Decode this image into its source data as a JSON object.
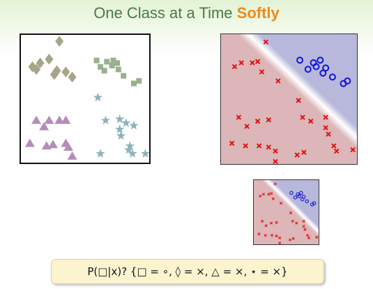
{
  "title": {
    "main": "One Class at a Time",
    "highlight": "Softly"
  },
  "formula": "P(□|x)? {□ = ∘, ◊ = ×, △ = ×, ⋆ = ×}",
  "colors": {
    "diamond": "#a6a587",
    "square": "#98b08e",
    "triangle": "#b58db7",
    "star": "#8db2ba",
    "positive": "#1414d6",
    "negative": "#e01010",
    "region_negative": "#dcb6b8",
    "region_positive": "#b8b8dc"
  },
  "points": {
    "diamonds": [
      [
        0.3,
        0.05
      ],
      [
        0.09,
        0.25
      ],
      [
        0.15,
        0.22
      ],
      [
        0.22,
        0.19
      ],
      [
        0.28,
        0.28
      ],
      [
        0.35,
        0.29
      ],
      [
        0.4,
        0.33
      ],
      [
        0.12,
        0.27
      ],
      [
        0.26,
        0.31
      ]
    ],
    "squares": [
      [
        0.59,
        0.2
      ],
      [
        0.62,
        0.25
      ],
      [
        0.65,
        0.28
      ],
      [
        0.67,
        0.21
      ],
      [
        0.71,
        0.24
      ],
      [
        0.75,
        0.22
      ],
      [
        0.76,
        0.27
      ],
      [
        0.8,
        0.32
      ],
      [
        0.88,
        0.38
      ],
      [
        0.92,
        0.36
      ],
      [
        0.72,
        0.2
      ]
    ],
    "triangles": [
      [
        0.12,
        0.67
      ],
      [
        0.18,
        0.72
      ],
      [
        0.22,
        0.67
      ],
      [
        0.3,
        0.67
      ],
      [
        0.35,
        0.67
      ],
      [
        0.07,
        0.85
      ],
      [
        0.2,
        0.87
      ],
      [
        0.25,
        0.86
      ],
      [
        0.35,
        0.85
      ],
      [
        0.37,
        0.88
      ],
      [
        0.4,
        0.95
      ]
    ],
    "stars": [
      [
        0.6,
        0.49
      ],
      [
        0.66,
        0.67
      ],
      [
        0.77,
        0.66
      ],
      [
        0.82,
        0.69
      ],
      [
        0.77,
        0.74
      ],
      [
        0.88,
        0.71
      ],
      [
        0.78,
        0.79
      ],
      [
        0.62,
        0.93
      ],
      [
        0.84,
        0.9
      ],
      [
        0.87,
        0.93
      ],
      [
        0.97,
        0.93
      ],
      [
        0.85,
        0.87
      ]
    ]
  },
  "classifier": {
    "circles": [
      [
        0.58,
        0.2
      ],
      [
        0.64,
        0.27
      ],
      [
        0.7,
        0.25
      ],
      [
        0.73,
        0.2
      ],
      [
        0.77,
        0.26
      ],
      [
        0.75,
        0.3
      ],
      [
        0.82,
        0.33
      ],
      [
        0.9,
        0.38
      ],
      [
        0.93,
        0.36
      ],
      [
        0.68,
        0.22
      ]
    ],
    "crosses": [
      [
        0.33,
        0.06
      ],
      [
        0.27,
        0.21
      ],
      [
        0.1,
        0.25
      ],
      [
        0.15,
        0.22
      ],
      [
        0.23,
        0.22
      ],
      [
        0.3,
        0.29
      ],
      [
        0.42,
        0.36
      ],
      [
        0.57,
        0.51
      ],
      [
        0.13,
        0.64
      ],
      [
        0.19,
        0.71
      ],
      [
        0.27,
        0.67
      ],
      [
        0.35,
        0.66
      ],
      [
        0.6,
        0.64
      ],
      [
        0.66,
        0.67
      ],
      [
        0.77,
        0.64
      ],
      [
        0.77,
        0.72
      ],
      [
        0.79,
        0.77
      ],
      [
        0.08,
        0.84
      ],
      [
        0.18,
        0.86
      ],
      [
        0.28,
        0.86
      ],
      [
        0.35,
        0.87
      ],
      [
        0.4,
        0.9
      ],
      [
        0.61,
        0.91
      ],
      [
        0.83,
        0.86
      ],
      [
        0.85,
        0.9
      ],
      [
        0.97,
        0.89
      ],
      [
        0.4,
        0.98
      ],
      [
        0.56,
        0.93
      ]
    ]
  }
}
